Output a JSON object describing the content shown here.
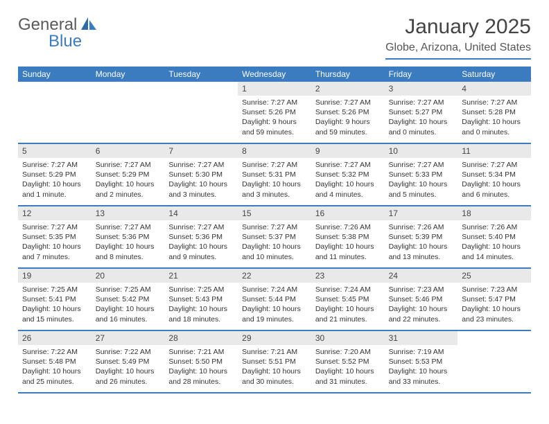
{
  "logo": {
    "text1": "General",
    "text2": "Blue"
  },
  "title": "January 2025",
  "subtitle": "Globe, Arizona, United States",
  "colors": {
    "header_bar": "#3b7bbf",
    "day_number_bg": "#e9e9e9",
    "text": "#333333",
    "logo_gray": "#5a5a5a",
    "logo_blue": "#3b7bbf"
  },
  "weekdays": [
    "Sunday",
    "Monday",
    "Tuesday",
    "Wednesday",
    "Thursday",
    "Friday",
    "Saturday"
  ],
  "weeks": [
    [
      {
        "n": "",
        "sunrise": "",
        "sunset": "",
        "daylight": ""
      },
      {
        "n": "",
        "sunrise": "",
        "sunset": "",
        "daylight": ""
      },
      {
        "n": "",
        "sunrise": "",
        "sunset": "",
        "daylight": ""
      },
      {
        "n": "1",
        "sunrise": "Sunrise: 7:27 AM",
        "sunset": "Sunset: 5:26 PM",
        "daylight": "Daylight: 9 hours and 59 minutes."
      },
      {
        "n": "2",
        "sunrise": "Sunrise: 7:27 AM",
        "sunset": "Sunset: 5:26 PM",
        "daylight": "Daylight: 9 hours and 59 minutes."
      },
      {
        "n": "3",
        "sunrise": "Sunrise: 7:27 AM",
        "sunset": "Sunset: 5:27 PM",
        "daylight": "Daylight: 10 hours and 0 minutes."
      },
      {
        "n": "4",
        "sunrise": "Sunrise: 7:27 AM",
        "sunset": "Sunset: 5:28 PM",
        "daylight": "Daylight: 10 hours and 0 minutes."
      }
    ],
    [
      {
        "n": "5",
        "sunrise": "Sunrise: 7:27 AM",
        "sunset": "Sunset: 5:29 PM",
        "daylight": "Daylight: 10 hours and 1 minute."
      },
      {
        "n": "6",
        "sunrise": "Sunrise: 7:27 AM",
        "sunset": "Sunset: 5:29 PM",
        "daylight": "Daylight: 10 hours and 2 minutes."
      },
      {
        "n": "7",
        "sunrise": "Sunrise: 7:27 AM",
        "sunset": "Sunset: 5:30 PM",
        "daylight": "Daylight: 10 hours and 3 minutes."
      },
      {
        "n": "8",
        "sunrise": "Sunrise: 7:27 AM",
        "sunset": "Sunset: 5:31 PM",
        "daylight": "Daylight: 10 hours and 3 minutes."
      },
      {
        "n": "9",
        "sunrise": "Sunrise: 7:27 AM",
        "sunset": "Sunset: 5:32 PM",
        "daylight": "Daylight: 10 hours and 4 minutes."
      },
      {
        "n": "10",
        "sunrise": "Sunrise: 7:27 AM",
        "sunset": "Sunset: 5:33 PM",
        "daylight": "Daylight: 10 hours and 5 minutes."
      },
      {
        "n": "11",
        "sunrise": "Sunrise: 7:27 AM",
        "sunset": "Sunset: 5:34 PM",
        "daylight": "Daylight: 10 hours and 6 minutes."
      }
    ],
    [
      {
        "n": "12",
        "sunrise": "Sunrise: 7:27 AM",
        "sunset": "Sunset: 5:35 PM",
        "daylight": "Daylight: 10 hours and 7 minutes."
      },
      {
        "n": "13",
        "sunrise": "Sunrise: 7:27 AM",
        "sunset": "Sunset: 5:36 PM",
        "daylight": "Daylight: 10 hours and 8 minutes."
      },
      {
        "n": "14",
        "sunrise": "Sunrise: 7:27 AM",
        "sunset": "Sunset: 5:36 PM",
        "daylight": "Daylight: 10 hours and 9 minutes."
      },
      {
        "n": "15",
        "sunrise": "Sunrise: 7:27 AM",
        "sunset": "Sunset: 5:37 PM",
        "daylight": "Daylight: 10 hours and 10 minutes."
      },
      {
        "n": "16",
        "sunrise": "Sunrise: 7:26 AM",
        "sunset": "Sunset: 5:38 PM",
        "daylight": "Daylight: 10 hours and 11 minutes."
      },
      {
        "n": "17",
        "sunrise": "Sunrise: 7:26 AM",
        "sunset": "Sunset: 5:39 PM",
        "daylight": "Daylight: 10 hours and 13 minutes."
      },
      {
        "n": "18",
        "sunrise": "Sunrise: 7:26 AM",
        "sunset": "Sunset: 5:40 PM",
        "daylight": "Daylight: 10 hours and 14 minutes."
      }
    ],
    [
      {
        "n": "19",
        "sunrise": "Sunrise: 7:25 AM",
        "sunset": "Sunset: 5:41 PM",
        "daylight": "Daylight: 10 hours and 15 minutes."
      },
      {
        "n": "20",
        "sunrise": "Sunrise: 7:25 AM",
        "sunset": "Sunset: 5:42 PM",
        "daylight": "Daylight: 10 hours and 16 minutes."
      },
      {
        "n": "21",
        "sunrise": "Sunrise: 7:25 AM",
        "sunset": "Sunset: 5:43 PM",
        "daylight": "Daylight: 10 hours and 18 minutes."
      },
      {
        "n": "22",
        "sunrise": "Sunrise: 7:24 AM",
        "sunset": "Sunset: 5:44 PM",
        "daylight": "Daylight: 10 hours and 19 minutes."
      },
      {
        "n": "23",
        "sunrise": "Sunrise: 7:24 AM",
        "sunset": "Sunset: 5:45 PM",
        "daylight": "Daylight: 10 hours and 21 minutes."
      },
      {
        "n": "24",
        "sunrise": "Sunrise: 7:23 AM",
        "sunset": "Sunset: 5:46 PM",
        "daylight": "Daylight: 10 hours and 22 minutes."
      },
      {
        "n": "25",
        "sunrise": "Sunrise: 7:23 AM",
        "sunset": "Sunset: 5:47 PM",
        "daylight": "Daylight: 10 hours and 23 minutes."
      }
    ],
    [
      {
        "n": "26",
        "sunrise": "Sunrise: 7:22 AM",
        "sunset": "Sunset: 5:48 PM",
        "daylight": "Daylight: 10 hours and 25 minutes."
      },
      {
        "n": "27",
        "sunrise": "Sunrise: 7:22 AM",
        "sunset": "Sunset: 5:49 PM",
        "daylight": "Daylight: 10 hours and 26 minutes."
      },
      {
        "n": "28",
        "sunrise": "Sunrise: 7:21 AM",
        "sunset": "Sunset: 5:50 PM",
        "daylight": "Daylight: 10 hours and 28 minutes."
      },
      {
        "n": "29",
        "sunrise": "Sunrise: 7:21 AM",
        "sunset": "Sunset: 5:51 PM",
        "daylight": "Daylight: 10 hours and 30 minutes."
      },
      {
        "n": "30",
        "sunrise": "Sunrise: 7:20 AM",
        "sunset": "Sunset: 5:52 PM",
        "daylight": "Daylight: 10 hours and 31 minutes."
      },
      {
        "n": "31",
        "sunrise": "Sunrise: 7:19 AM",
        "sunset": "Sunset: 5:53 PM",
        "daylight": "Daylight: 10 hours and 33 minutes."
      },
      {
        "n": "",
        "sunrise": "",
        "sunset": "",
        "daylight": ""
      }
    ]
  ]
}
